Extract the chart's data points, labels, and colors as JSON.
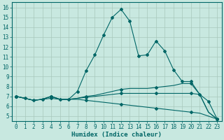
{
  "xlabel": "Humidex (Indice chaleur)",
  "xlim": [
    -0.5,
    23.5
  ],
  "ylim": [
    4.5,
    16.5
  ],
  "xticks": [
    0,
    1,
    2,
    3,
    4,
    5,
    6,
    7,
    8,
    9,
    10,
    11,
    12,
    13,
    14,
    15,
    16,
    17,
    18,
    19,
    20,
    21,
    22,
    23
  ],
  "yticks": [
    5,
    6,
    7,
    8,
    9,
    10,
    11,
    12,
    13,
    14,
    15,
    16
  ],
  "bg_color": "#c8e8e0",
  "grid_color": "#a8c8bc",
  "line_color": "#006666",
  "lines": [
    {
      "x": [
        0,
        1,
        2,
        3,
        4,
        5,
        6,
        7,
        8,
        9,
        10,
        11,
        12,
        13,
        14,
        15,
        16,
        17,
        18,
        19,
        20,
        21,
        22,
        23
      ],
      "y": [
        7.0,
        6.8,
        6.6,
        6.7,
        7.0,
        6.7,
        6.7,
        7.5,
        9.6,
        11.2,
        13.2,
        15.0,
        15.8,
        14.6,
        11.1,
        11.2,
        12.6,
        11.6,
        9.7,
        8.5,
        8.5,
        7.2,
        6.5,
        4.7
      ],
      "marker_x": [
        0,
        1,
        2,
        3,
        4,
        5,
        6,
        7,
        8,
        9,
        10,
        11,
        12,
        13,
        14,
        15,
        16,
        17,
        18,
        19,
        20,
        21,
        22,
        23
      ],
      "marker_y": [
        7.0,
        6.8,
        6.6,
        6.7,
        7.0,
        6.7,
        6.7,
        7.5,
        9.6,
        11.2,
        13.2,
        15.0,
        15.8,
        14.6,
        11.1,
        11.2,
        12.6,
        11.6,
        9.7,
        8.5,
        8.5,
        7.2,
        6.5,
        4.7
      ]
    },
    {
      "x": [
        0,
        1,
        2,
        3,
        4,
        5,
        6,
        7,
        8,
        9,
        10,
        11,
        12,
        13,
        14,
        15,
        16,
        17,
        18,
        19,
        20,
        21,
        22,
        23
      ],
      "y": [
        7.0,
        6.8,
        6.6,
        6.7,
        7.0,
        6.7,
        6.7,
        6.8,
        7.0,
        7.1,
        7.3,
        7.5,
        7.7,
        7.8,
        7.8,
        7.8,
        7.9,
        8.0,
        8.1,
        8.3,
        8.3,
        7.2,
        5.4,
        4.7
      ],
      "marker_x": [
        0,
        4,
        8,
        12,
        16,
        20,
        23
      ],
      "marker_y": [
        7.0,
        7.0,
        7.0,
        7.7,
        7.9,
        8.3,
        4.7
      ]
    },
    {
      "x": [
        0,
        1,
        2,
        3,
        4,
        5,
        6,
        7,
        8,
        9,
        10,
        11,
        12,
        13,
        14,
        15,
        16,
        17,
        18,
        19,
        20,
        21,
        22,
        23
      ],
      "y": [
        7.0,
        6.8,
        6.6,
        6.7,
        7.0,
        6.7,
        6.7,
        6.8,
        6.9,
        7.0,
        7.1,
        7.2,
        7.3,
        7.3,
        7.3,
        7.3,
        7.3,
        7.3,
        7.3,
        7.3,
        7.3,
        7.2,
        5.4,
        4.7
      ],
      "marker_x": [
        0,
        4,
        8,
        12,
        16,
        20,
        23
      ],
      "marker_y": [
        7.0,
        7.0,
        6.9,
        7.3,
        7.3,
        7.3,
        4.7
      ]
    },
    {
      "x": [
        0,
        1,
        2,
        3,
        4,
        5,
        6,
        7,
        8,
        9,
        10,
        11,
        12,
        13,
        14,
        15,
        16,
        17,
        18,
        19,
        20,
        21,
        22,
        23
      ],
      "y": [
        7.0,
        6.8,
        6.6,
        6.7,
        6.8,
        6.7,
        6.7,
        6.7,
        6.6,
        6.5,
        6.4,
        6.3,
        6.2,
        6.1,
        6.0,
        5.9,
        5.8,
        5.7,
        5.6,
        5.5,
        5.4,
        5.3,
        5.0,
        4.7
      ],
      "marker_x": [
        0,
        4,
        8,
        12,
        16,
        20,
        23
      ],
      "marker_y": [
        7.0,
        6.8,
        6.6,
        6.2,
        5.8,
        5.4,
        4.7
      ]
    }
  ]
}
